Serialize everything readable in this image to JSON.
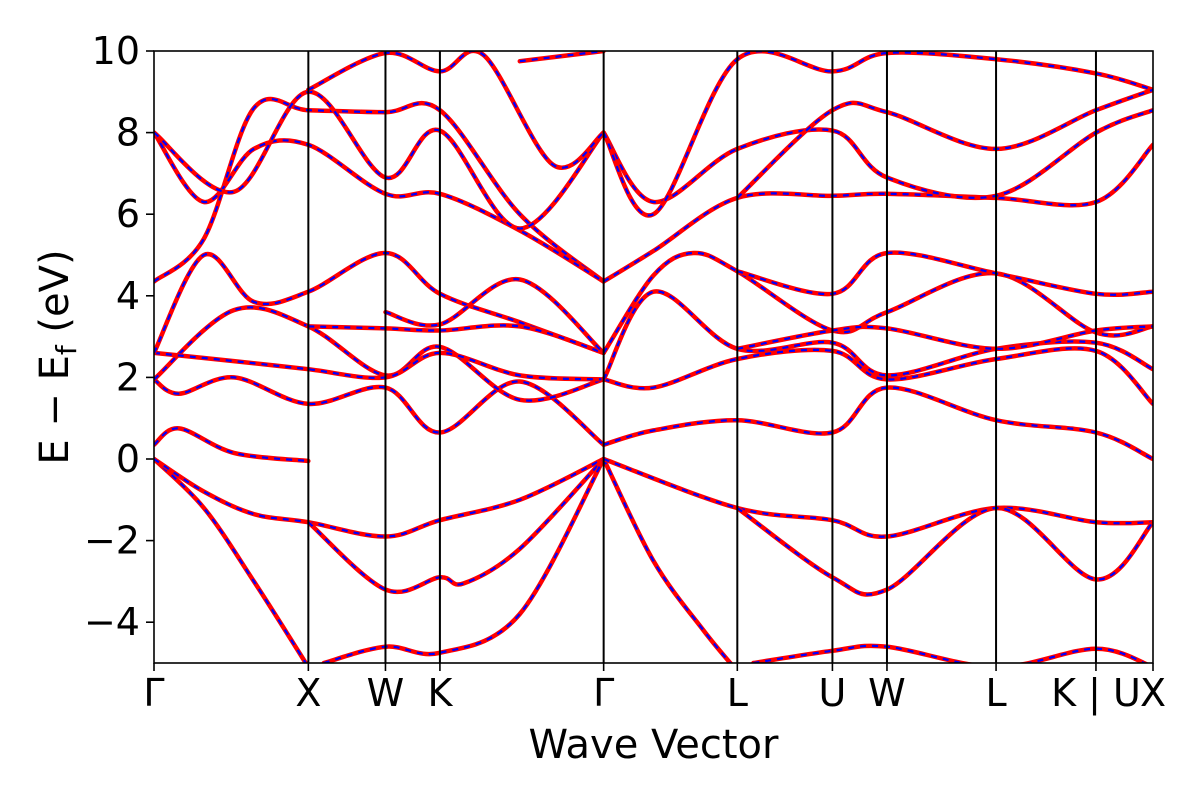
{
  "chart_data": {
    "type": "line",
    "xlabel": "Wave Vector",
    "ylabel": "E − E",
    "ylabel_sub": "f",
    "ylabel_unit": " (eV)",
    "ylim": [
      -5,
      10
    ],
    "yticks": [
      -4,
      -2,
      0,
      2,
      4,
      6,
      8,
      10
    ],
    "ytick_labels": [
      "−4",
      "−2",
      "0",
      "2",
      "4",
      "6",
      "8",
      "10"
    ],
    "xlim": [
      0,
      1
    ],
    "kpoints": [
      {
        "label": "Γ",
        "x": 0.0
      },
      {
        "label": "X",
        "x": 0.1545
      },
      {
        "label": "W",
        "x": 0.2317
      },
      {
        "label": "K",
        "x": 0.2862
      },
      {
        "label": "Γ",
        "x": 0.4501
      },
      {
        "label": "L",
        "x": 0.5839
      },
      {
        "label": "U",
        "x": 0.6791
      },
      {
        "label": "W",
        "x": 0.7337
      },
      {
        "label": "L",
        "x": 0.8429
      },
      {
        "label": "K | U",
        "x": 0.9429
      },
      {
        "label": "X",
        "x": 1.0
      }
    ],
    "colors": {
      "solid": "#ff0000",
      "dashed": "#0000ff",
      "frame": "#000000"
    },
    "series": [
      {
        "values": [
          [
            0,
            0
          ],
          [
            0.05,
            -1.2
          ],
          [
            0.1,
            -3.0
          ],
          [
            0.1545,
            -5.1
          ]
        ]
      },
      {
        "values": [
          [
            0,
            0
          ],
          [
            0.05,
            -0.8
          ],
          [
            0.1,
            -1.35
          ],
          [
            0.1545,
            -1.55
          ],
          [
            0.2317,
            -1.9
          ],
          [
            0.2862,
            -1.5
          ],
          [
            0.3662,
            -1.0
          ],
          [
            0.4501,
            0.0
          ]
        ]
      },
      {
        "values": [
          [
            0.1545,
            -1.55
          ],
          [
            0.2317,
            -3.2
          ],
          [
            0.2862,
            -2.9
          ],
          [
            0.31,
            -3.05
          ],
          [
            0.3662,
            -2.2
          ],
          [
            0.4501,
            0.0
          ]
        ]
      },
      {
        "values": [
          [
            0.17,
            -5.0
          ],
          [
            0.2317,
            -4.6
          ],
          [
            0.2862,
            -4.75
          ],
          [
            0.3662,
            -3.8
          ],
          [
            0.4501,
            0.0
          ]
        ]
      },
      {
        "values": [
          [
            0.4501,
            0.0
          ],
          [
            0.5,
            -2.5
          ],
          [
            0.55,
            -4.2
          ],
          [
            0.5839,
            -5.2
          ]
        ]
      },
      {
        "values": [
          [
            0.4501,
            0.0
          ],
          [
            0.5839,
            -1.2
          ],
          [
            0.6791,
            -1.5
          ],
          [
            0.7337,
            -1.9
          ],
          [
            0.8429,
            -1.2
          ],
          [
            0.9429,
            -1.55
          ],
          [
            1.0,
            -1.55
          ]
        ]
      },
      {
        "values": [
          [
            0.5839,
            -1.2
          ],
          [
            0.6791,
            -2.9
          ],
          [
            0.7337,
            -3.2
          ],
          [
            0.8429,
            -1.2
          ],
          [
            0.9429,
            -2.95
          ],
          [
            1.0,
            -1.55
          ]
        ]
      },
      {
        "values": [
          [
            0.6,
            -5.0
          ],
          [
            0.6791,
            -4.7
          ],
          [
            0.7337,
            -4.6
          ],
          [
            0.8429,
            -5.1
          ],
          [
            0.9429,
            -4.65
          ],
          [
            1.0,
            -5.1
          ]
        ]
      },
      {
        "values": [
          [
            0,
            0.35
          ],
          [
            0.025,
            0.75
          ],
          [
            0.08,
            0.15
          ],
          [
            0.1545,
            -0.05
          ]
        ]
      },
      {
        "values": [
          [
            0,
            1.95
          ],
          [
            0.025,
            1.6
          ],
          [
            0.08,
            2.0
          ],
          [
            0.1545,
            1.35
          ],
          [
            0.2317,
            1.75
          ],
          [
            0.2862,
            0.65
          ],
          [
            0.3662,
            1.9
          ],
          [
            0.4501,
            0.35
          ]
        ]
      },
      {
        "values": [
          [
            0.4501,
            0.35
          ],
          [
            0.5,
            0.7
          ],
          [
            0.5839,
            0.95
          ],
          [
            0.6791,
            0.65
          ],
          [
            0.7337,
            1.75
          ],
          [
            0.8429,
            0.95
          ],
          [
            0.9429,
            0.65
          ],
          [
            1.0,
            0.0
          ]
        ]
      },
      {
        "values": [
          [
            0,
            1.95
          ],
          [
            0.08,
            3.65
          ],
          [
            0.1545,
            3.25
          ],
          [
            0.2317,
            2.05
          ],
          [
            0.2862,
            2.75
          ],
          [
            0.3662,
            1.45
          ],
          [
            0.4501,
            1.95
          ]
        ]
      },
      {
        "values": [
          [
            0,
            2.6
          ],
          [
            0.08,
            2.4
          ],
          [
            0.1545,
            2.2
          ],
          [
            0.2317,
            2.0
          ],
          [
            0.2862,
            2.6
          ],
          [
            0.3662,
            2.05
          ],
          [
            0.4501,
            1.95
          ]
        ]
      },
      {
        "values": [
          [
            0,
            2.6
          ],
          [
            0.05,
            5.0
          ],
          [
            0.1,
            3.85
          ],
          [
            0.1545,
            4.1
          ],
          [
            0.2317,
            5.05
          ],
          [
            0.2862,
            4.05
          ],
          [
            0.3662,
            3.35
          ],
          [
            0.4501,
            2.6
          ]
        ]
      },
      {
        "values": [
          [
            0.1545,
            3.25
          ],
          [
            0.2317,
            3.2
          ],
          [
            0.2862,
            3.15
          ],
          [
            0.3662,
            3.25
          ],
          [
            0.4501,
            2.6
          ]
        ]
      },
      {
        "values": [
          [
            0.2317,
            3.6
          ],
          [
            0.2862,
            3.3
          ],
          [
            0.3662,
            4.4
          ],
          [
            0.4501,
            2.6
          ]
        ]
      },
      {
        "values": [
          [
            0.4501,
            1.95
          ],
          [
            0.5,
            1.75
          ],
          [
            0.5839,
            2.45
          ],
          [
            0.6791,
            2.65
          ],
          [
            0.7337,
            1.95
          ],
          [
            0.8429,
            2.45
          ],
          [
            0.9429,
            2.65
          ],
          [
            1.0,
            1.35
          ]
        ]
      },
      {
        "values": [
          [
            0.4501,
            1.95
          ],
          [
            0.5,
            4.1
          ],
          [
            0.5839,
            2.7
          ],
          [
            0.6791,
            2.85
          ],
          [
            0.7337,
            2.05
          ],
          [
            0.8429,
            2.7
          ],
          [
            0.9429,
            2.85
          ],
          [
            1.0,
            2.2
          ]
        ]
      },
      {
        "values": [
          [
            0.4501,
            2.6
          ],
          [
            0.5,
            4.5
          ],
          [
            0.54,
            5.05
          ],
          [
            0.5839,
            4.6
          ],
          [
            0.6791,
            3.15
          ],
          [
            0.7337,
            3.6
          ],
          [
            0.8429,
            4.55
          ],
          [
            0.9429,
            3.1
          ],
          [
            1.0,
            3.25
          ]
        ]
      },
      {
        "values": [
          [
            0.5839,
            2.7
          ],
          [
            0.6791,
            3.15
          ],
          [
            0.7337,
            3.2
          ],
          [
            0.8429,
            2.7
          ],
          [
            0.9429,
            3.15
          ],
          [
            1.0,
            3.25
          ]
        ]
      },
      {
        "values": [
          [
            0.5839,
            4.6
          ],
          [
            0.6791,
            4.05
          ],
          [
            0.7337,
            5.05
          ],
          [
            0.8429,
            4.55
          ],
          [
            0.9429,
            4.05
          ],
          [
            1.0,
            4.1
          ]
        ]
      },
      {
        "values": [
          [
            0,
            4.35
          ],
          [
            0.05,
            5.4
          ],
          [
            0.1,
            8.6
          ],
          [
            0.1545,
            8.55
          ],
          [
            0.2317,
            8.5
          ],
          [
            0.2862,
            8.55
          ],
          [
            0.3662,
            6.0
          ],
          [
            0.4501,
            4.35
          ]
        ]
      },
      {
        "values": [
          [
            0,
            8.0
          ],
          [
            0.05,
            6.3
          ],
          [
            0.1,
            7.6
          ],
          [
            0.1545,
            7.7
          ],
          [
            0.2317,
            6.5
          ],
          [
            0.2862,
            6.5
          ],
          [
            0.3662,
            5.6
          ],
          [
            0.4501,
            4.35
          ]
        ]
      },
      {
        "values": [
          [
            0,
            8.0
          ],
          [
            0.08,
            6.55
          ],
          [
            0.1545,
            9.0
          ],
          [
            0.2317,
            6.9
          ],
          [
            0.2862,
            8.05
          ],
          [
            0.3662,
            5.65
          ],
          [
            0.4501,
            8.0
          ]
        ]
      },
      {
        "values": [
          [
            0.1545,
            9.05
          ],
          [
            0.2317,
            9.95
          ],
          [
            0.2862,
            9.5
          ],
          [
            0.33,
            9.9
          ],
          [
            0.4,
            7.2
          ],
          [
            0.4501,
            8.0
          ]
        ]
      },
      {
        "values": [
          [
            0.4501,
            4.35
          ],
          [
            0.5,
            5.1
          ],
          [
            0.5839,
            6.4
          ],
          [
            0.6791,
            6.45
          ],
          [
            0.7337,
            6.5
          ],
          [
            0.8429,
            6.4
          ],
          [
            0.9429,
            6.3
          ],
          [
            1.0,
            7.7
          ]
        ]
      },
      {
        "values": [
          [
            0.4501,
            8.0
          ],
          [
            0.5,
            6.3
          ],
          [
            0.5839,
            7.6
          ],
          [
            0.6791,
            8.05
          ],
          [
            0.7337,
            6.9
          ],
          [
            0.8429,
            6.45
          ],
          [
            0.9429,
            8.0
          ],
          [
            1.0,
            8.55
          ]
        ]
      },
      {
        "values": [
          [
            0.4501,
            8.0
          ],
          [
            0.5,
            6.0
          ],
          [
            0.5839,
            9.8
          ],
          [
            0.6791,
            9.5
          ],
          [
            0.7337,
            9.95
          ],
          [
            0.8429,
            9.8
          ],
          [
            0.9429,
            9.45
          ],
          [
            1.0,
            9.05
          ]
        ]
      },
      {
        "values": [
          [
            0.5839,
            6.4
          ],
          [
            0.6791,
            8.55
          ],
          [
            0.7337,
            8.5
          ],
          [
            0.8429,
            7.6
          ],
          [
            0.9429,
            8.55
          ],
          [
            1.0,
            9.05
          ]
        ]
      },
      {
        "values": [
          [
            0.3662,
            9.75
          ],
          [
            0.4501,
            10.0
          ]
        ]
      }
    ]
  }
}
